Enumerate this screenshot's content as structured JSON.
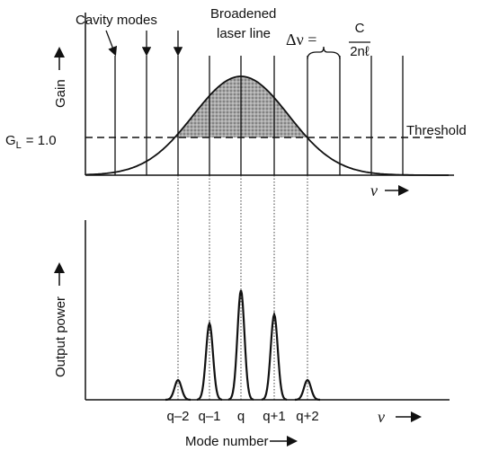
{
  "top_panel": {
    "cavity_modes": "Cavity modes",
    "broadened": "Broadened",
    "laser_line": "laser line",
    "delta_nu": "Δν =",
    "numerator": "C",
    "denominator": "2nℓ",
    "threshold": "Threshold",
    "gain_symbol": "G",
    "gain_subscript": "L",
    "gain_value": "= 1.0",
    "y_label": "Gain",
    "x_label": "ν"
  },
  "bottom_panel": {
    "y_label": "Output power",
    "x_label": "ν",
    "x_title": "Mode number",
    "modes": [
      "q–2",
      "q–1",
      "q",
      "q+1",
      "q+2"
    ]
  }
}
